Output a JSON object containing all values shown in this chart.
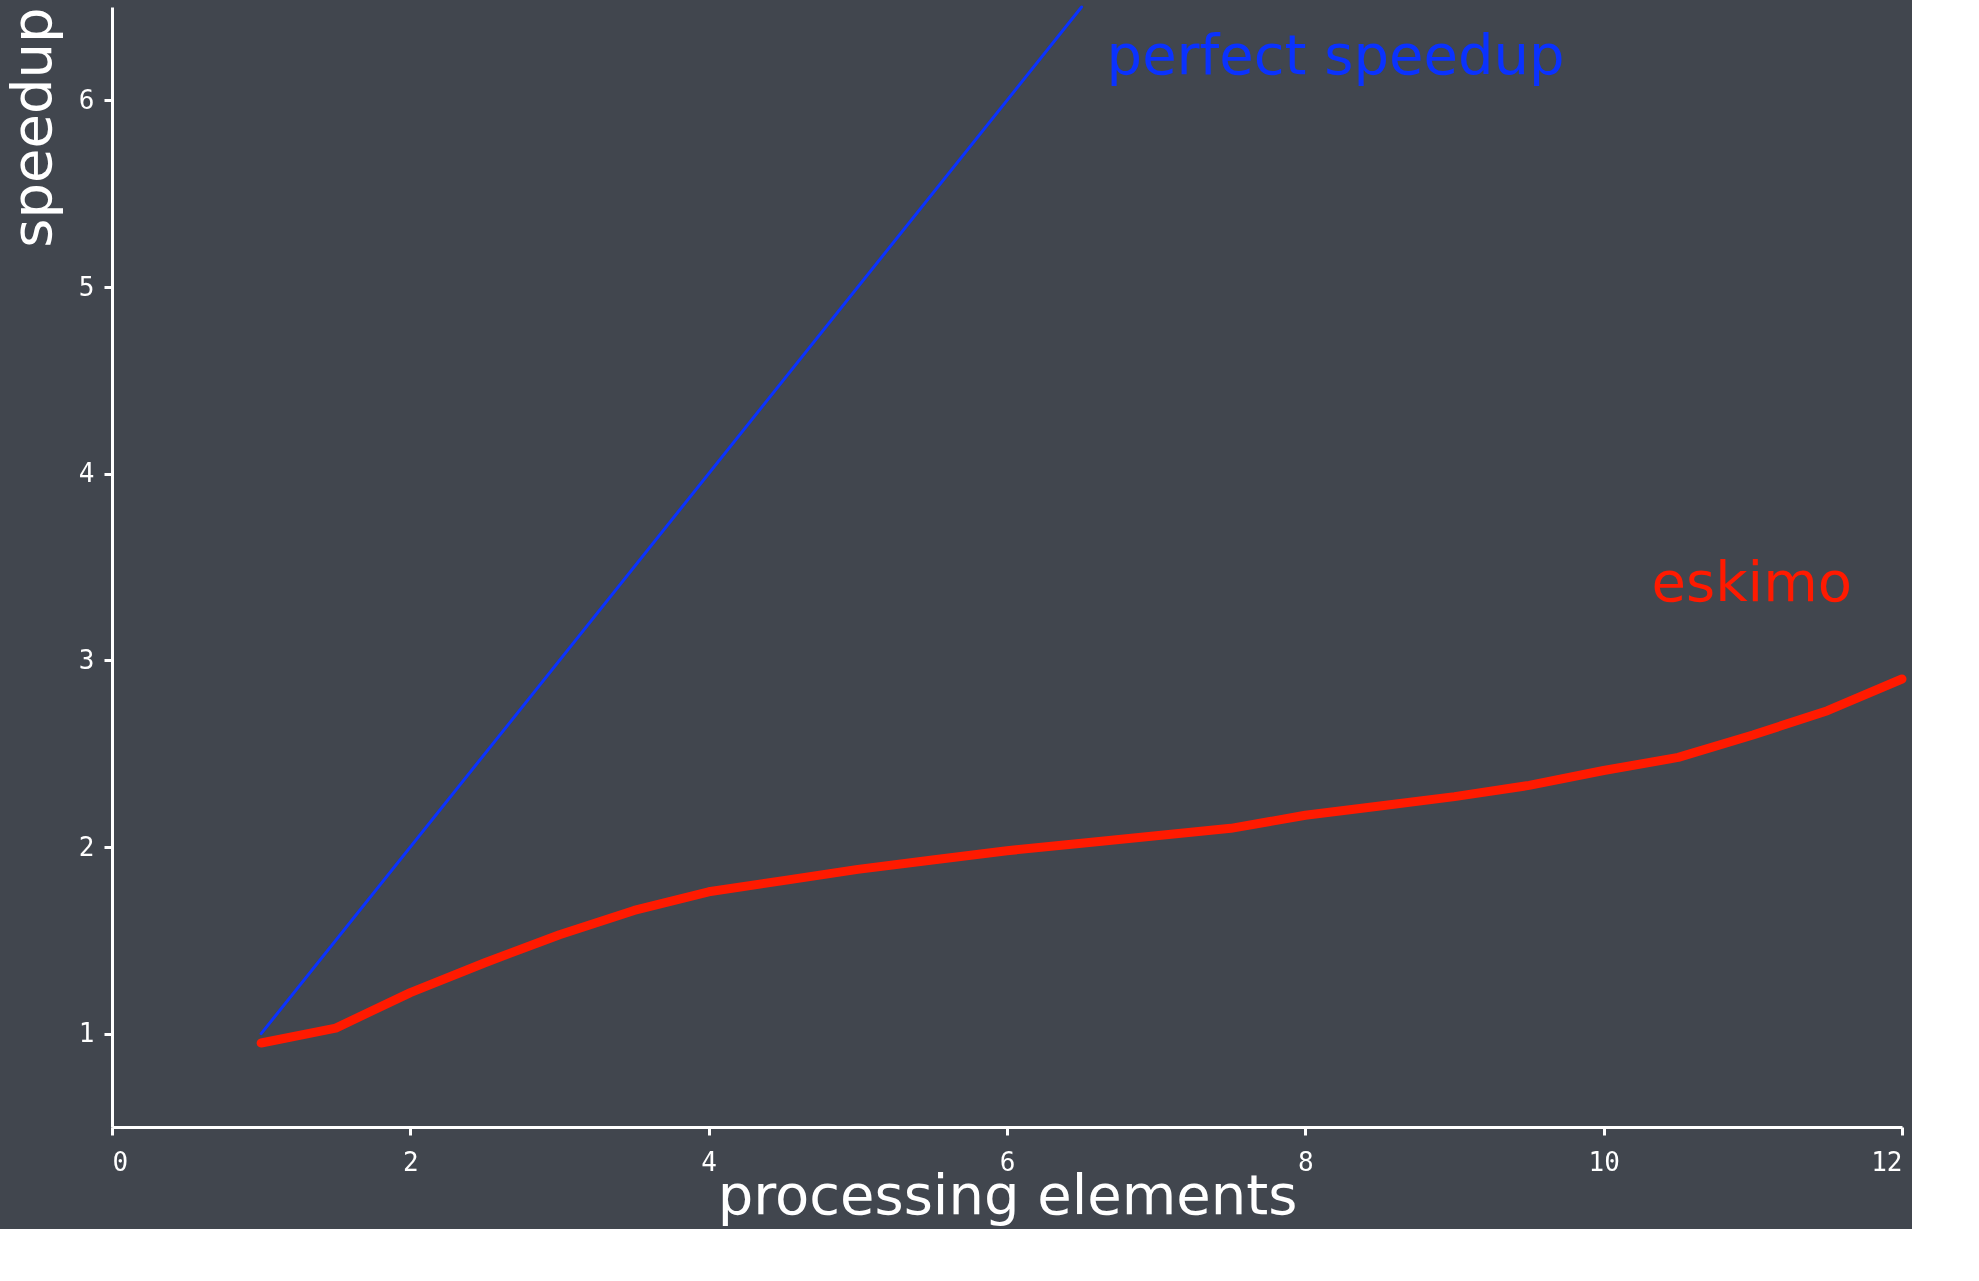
{
  "chart_data": {
    "type": "line",
    "xlabel": "processing elements",
    "ylabel": "speedup",
    "xlim": [
      0,
      12
    ],
    "ylim": [
      0.5,
      6.5
    ],
    "xticks": [
      0,
      2,
      4,
      6,
      8,
      10,
      12
    ],
    "yticks": [
      1,
      2,
      3,
      4,
      5,
      6
    ],
    "grid": false,
    "series": [
      {
        "name": "perfect speedup",
        "color": "#0a32ff",
        "x": [
          1,
          6.5
        ],
        "values": [
          1,
          6.5
        ]
      },
      {
        "name": "eskimo",
        "color": "#ff1a00",
        "x": [
          1,
          1.5,
          2,
          2.5,
          3,
          3.5,
          4,
          4.5,
          5,
          5.5,
          6,
          6.5,
          7,
          7.5,
          8,
          8.5,
          9,
          9.5,
          10,
          10.5,
          11,
          11.5,
          12
        ],
        "values": [
          0.95,
          1.03,
          1.22,
          1.38,
          1.53,
          1.66,
          1.76,
          1.82,
          1.88,
          1.93,
          1.98,
          2.02,
          2.06,
          2.1,
          2.17,
          2.22,
          2.27,
          2.33,
          2.41,
          2.48,
          2.6,
          2.73,
          2.9
        ]
      }
    ]
  }
}
